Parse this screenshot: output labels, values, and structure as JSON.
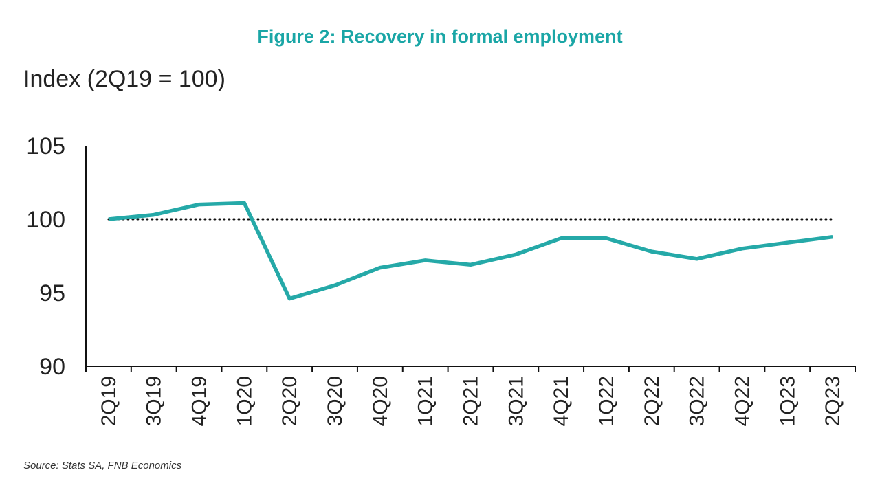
{
  "chart_data": {
    "type": "line",
    "title": "Figure 2: Recovery in formal employment",
    "ylabel": "Index (2Q19 = 100)",
    "xlabel": "",
    "source": "Source: Stats SA, FNB Economics",
    "categories": [
      "2Q19",
      "3Q19",
      "4Q19",
      "1Q20",
      "2Q20",
      "3Q20",
      "4Q20",
      "1Q21",
      "2Q21",
      "3Q21",
      "4Q21",
      "1Q22",
      "2Q22",
      "3Q22",
      "4Q22",
      "1Q23",
      "2Q23"
    ],
    "series": [
      {
        "values": [
          100.0,
          100.3,
          101.0,
          101.1,
          94.6,
          95.5,
          96.7,
          97.2,
          96.9,
          97.6,
          98.7,
          98.7,
          97.8,
          97.3,
          98.0,
          98.4,
          98.8
        ],
        "color": "#25a9a8"
      }
    ],
    "reference_line": {
      "value": 100,
      "style": "dotted",
      "color": "#111111"
    },
    "yticks": [
      90,
      95,
      100,
      105
    ],
    "ylim": [
      90,
      105
    ],
    "grid": false,
    "legend": "none"
  }
}
